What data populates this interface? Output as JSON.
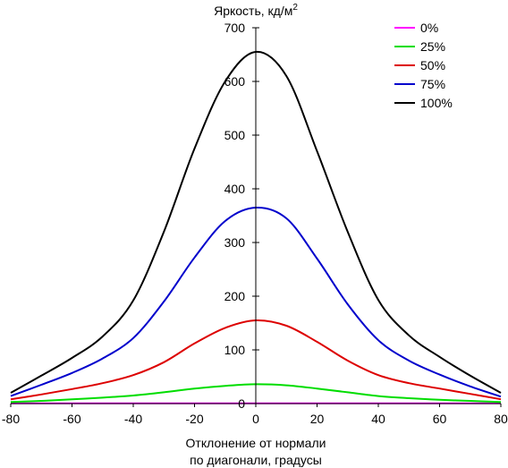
{
  "chart_data": {
    "type": "line",
    "title": "",
    "ylabel": "Яркость, кд/м",
    "ylabel_superscript": "2",
    "xlabel_line1": "Отклонение от нормали",
    "xlabel_line2": "по диагонали, градусы",
    "xlim": [
      -80,
      80
    ],
    "ylim": [
      0,
      700
    ],
    "xticks": [
      "-80",
      "-60",
      "-40",
      "-20",
      "0",
      "20",
      "40",
      "60",
      "80"
    ],
    "yticks": [
      "0",
      "100",
      "200",
      "300",
      "400",
      "500",
      "600",
      "700"
    ],
    "x": [
      -80,
      -70,
      -60,
      -50,
      -40,
      -30,
      -20,
      -10,
      0,
      10,
      20,
      30,
      40,
      50,
      60,
      70,
      80
    ],
    "series": [
      {
        "name": "0%",
        "color": "#ff00ff",
        "values": [
          0.5,
          0.5,
          0.5,
          0.5,
          0.5,
          0.5,
          0.5,
          0.5,
          0.5,
          0.5,
          0.5,
          0.5,
          0.5,
          0.5,
          0.5,
          0.5,
          0.5
        ]
      },
      {
        "name": "25%",
        "color": "#00dd00",
        "values": [
          3,
          5,
          8,
          11,
          15,
          21,
          28,
          33,
          36,
          34,
          28,
          21,
          14,
          10,
          7,
          5,
          3
        ]
      },
      {
        "name": "50%",
        "color": "#dd0000",
        "values": [
          8,
          17,
          27,
          38,
          53,
          77,
          112,
          141,
          155,
          145,
          115,
          80,
          53,
          38,
          28,
          18,
          8
        ]
      },
      {
        "name": "75%",
        "color": "#0000cc",
        "values": [
          14,
          35,
          57,
          84,
          122,
          190,
          272,
          340,
          365,
          345,
          270,
          185,
          118,
          80,
          54,
          32,
          13
        ]
      },
      {
        "name": "100%",
        "color": "#000000",
        "values": [
          20,
          52,
          85,
          125,
          192,
          320,
          475,
          600,
          655,
          610,
          470,
          320,
          193,
          127,
          87,
          52,
          20
        ]
      }
    ],
    "grid": false,
    "legend_position": "top-right"
  }
}
